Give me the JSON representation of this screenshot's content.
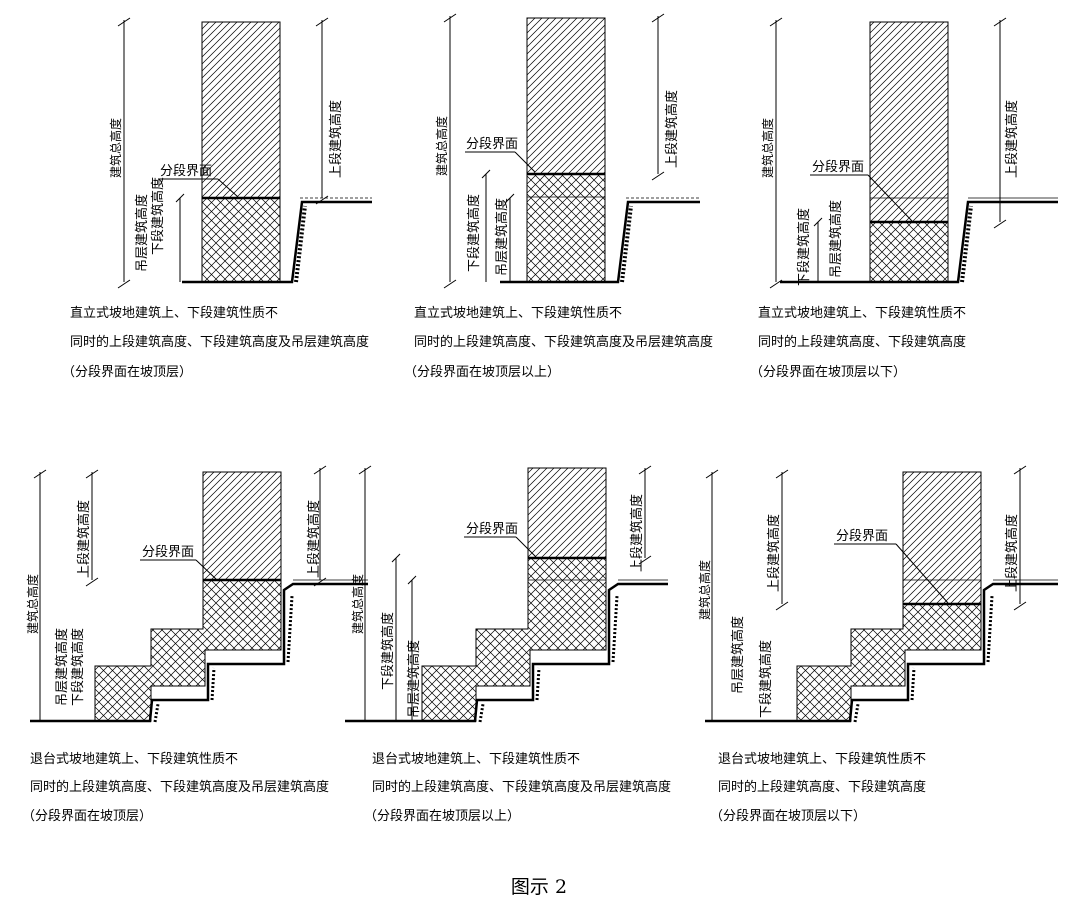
{
  "labels": {
    "total_height": "建筑总高度",
    "upper_height": "上段建筑高度",
    "lower_height": "下段建筑高度",
    "stilt_height": "吊层建筑高度",
    "interface": "分段界面"
  },
  "captions": [
    {
      "line1": "直立式坡地建筑上、下段建筑性质不",
      "line2": "同时的上段建筑高度、下段建筑高度及吊层建筑高度",
      "line3": "（分段界面在坡顶层）"
    },
    {
      "line1": "直立式坡地建筑上、下段建筑性质不",
      "line2": "同时的上段建筑高度、下段建筑高度及吊层建筑高度",
      "line3": "（分段界面在坡顶层以上）"
    },
    {
      "line1": "直立式坡地建筑上、下段建筑性质不",
      "line2": "同时的上段建筑高度、下段建筑高度",
      "line3": "（分段界面在坡顶层以下）"
    },
    {
      "line1": "退台式坡地建筑上、下段建筑性质不",
      "line2": "同时的上段建筑高度、下段建筑高度及吊层建筑高度",
      "line3": "（分段界面在坡顶层）"
    },
    {
      "line1": "退台式坡地建筑上、下段建筑性质不",
      "line2": "同时的上段建筑高度、下段建筑高度及吊层建筑高度",
      "line3": "（分段界面在坡顶层以上）"
    },
    {
      "line1": "退台式坡地建筑上、下段建筑性质不",
      "line2": "同时的上段建筑高度、下段建筑高度",
      "line3": "（分段界面在坡顶层以下）"
    }
  ],
  "figure_title": "图示 2"
}
